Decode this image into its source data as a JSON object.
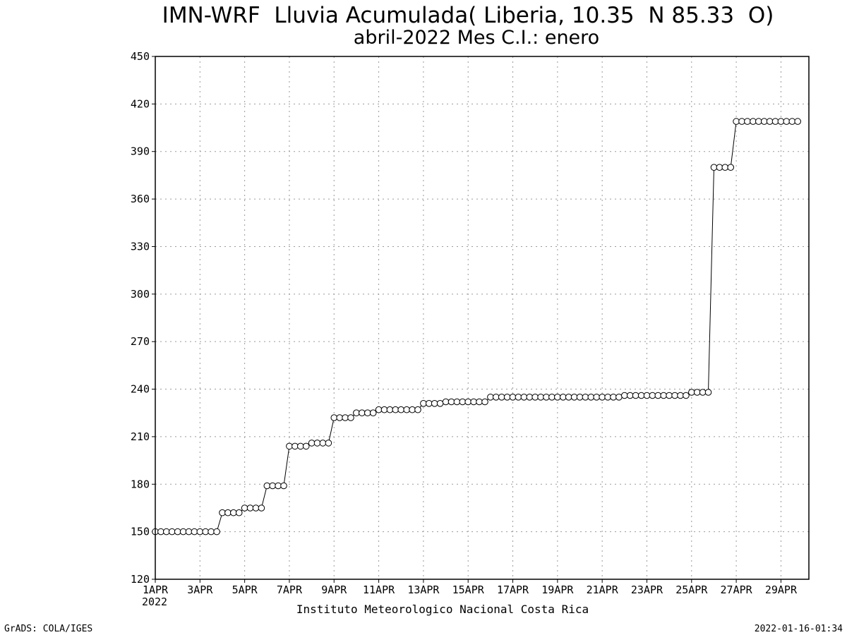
{
  "chart_data": {
    "type": "line",
    "title": "IMN-WRF  Lluvia Acumulada( Liberia, 10.35  N 85.33  O)",
    "subtitle": "abril-2022 Mes C.I.: enero",
    "x_tick_labels": [
      "1APR",
      "3APR",
      "5APR",
      "7APR",
      "9APR",
      "11APR",
      "13APR",
      "15APR",
      "17APR",
      "19APR",
      "21APR",
      "23APR",
      "25APR",
      "27APR",
      "29APR"
    ],
    "x_year_label": "2022",
    "y_ticks": [
      120,
      150,
      180,
      210,
      240,
      270,
      300,
      330,
      360,
      390,
      420,
      450
    ],
    "ylim": [
      120,
      450
    ],
    "xlim_days": [
      1,
      30.25
    ],
    "grid": true,
    "marker": "open-circle",
    "series": [
      {
        "values": [
          150,
          150,
          150,
          150,
          150,
          150,
          150,
          150,
          150,
          150,
          150,
          150,
          162,
          162,
          162,
          162,
          165,
          165,
          165,
          165,
          179,
          179,
          179,
          179,
          204,
          204,
          204,
          204,
          206,
          206,
          206,
          206,
          222,
          222,
          222,
          222,
          225,
          225,
          225,
          225,
          227,
          227,
          227,
          227,
          227,
          227,
          227,
          227,
          231,
          231,
          231,
          231,
          232,
          232,
          232,
          232,
          232,
          232,
          232,
          232,
          235,
          235,
          235,
          235,
          235,
          235,
          235,
          235,
          235,
          235,
          235,
          235,
          235,
          235,
          235,
          235,
          235,
          235,
          235,
          235,
          235,
          235,
          235,
          235,
          236,
          236,
          236,
          236,
          236,
          236,
          236,
          236,
          236,
          236,
          236,
          236,
          238,
          238,
          238,
          238,
          380,
          380,
          380,
          380,
          409,
          409,
          409,
          409,
          409,
          409,
          409,
          409,
          409,
          409,
          409,
          409
        ]
      }
    ]
  },
  "footer": {
    "institution": "Instituto Meteorologico Nacional Costa Rica",
    "grads_credit": "GrADS: COLA/IGES",
    "timestamp": "2022-01-16-01:34"
  }
}
